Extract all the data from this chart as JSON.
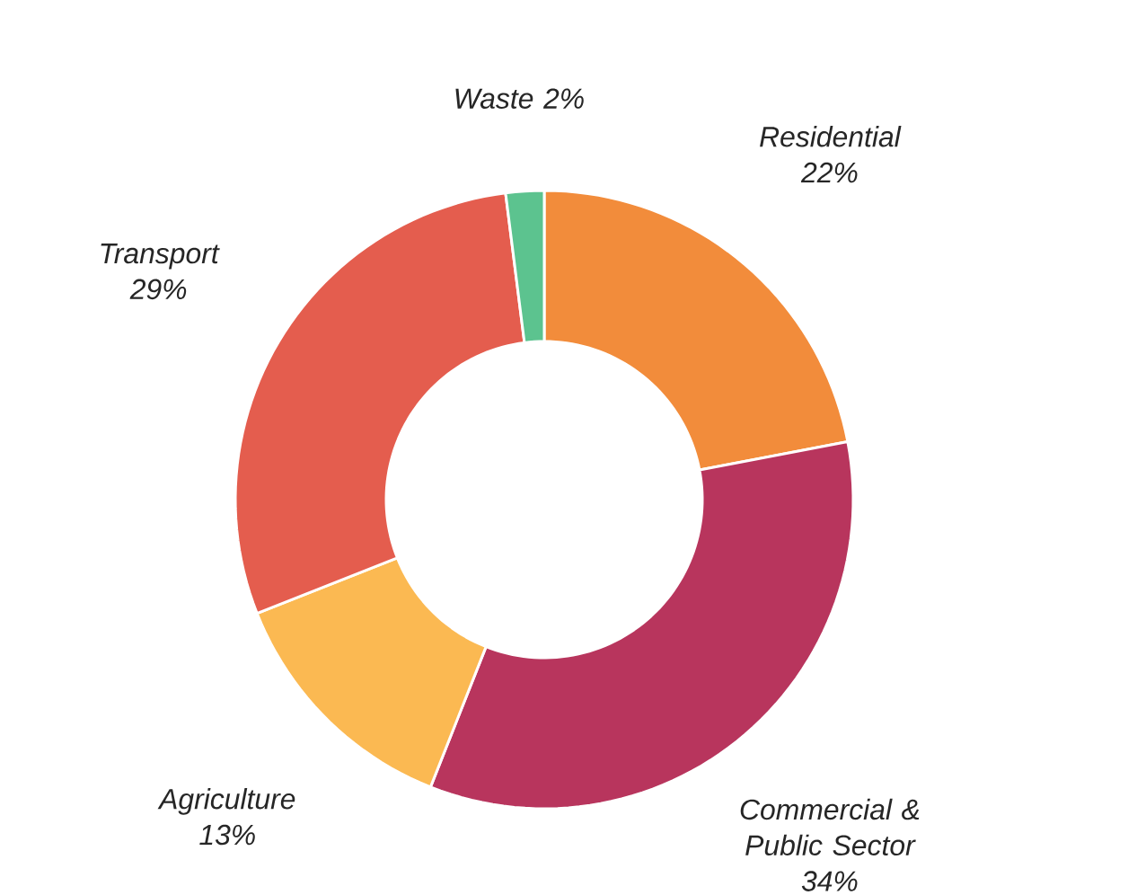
{
  "chart_data": {
    "type": "donut",
    "categories": [
      "Residential",
      "Commercial & Public Sector",
      "Agriculture",
      "Transport",
      "Waste"
    ],
    "values": [
      22,
      34,
      13,
      29,
      2
    ],
    "value_labels": [
      "22%",
      "34%",
      "13%",
      "29%",
      "2%"
    ],
    "colors": [
      "#f28c3b",
      "#b8355d",
      "#fbb952",
      "#e45d4e",
      "#5cc38f"
    ]
  }
}
